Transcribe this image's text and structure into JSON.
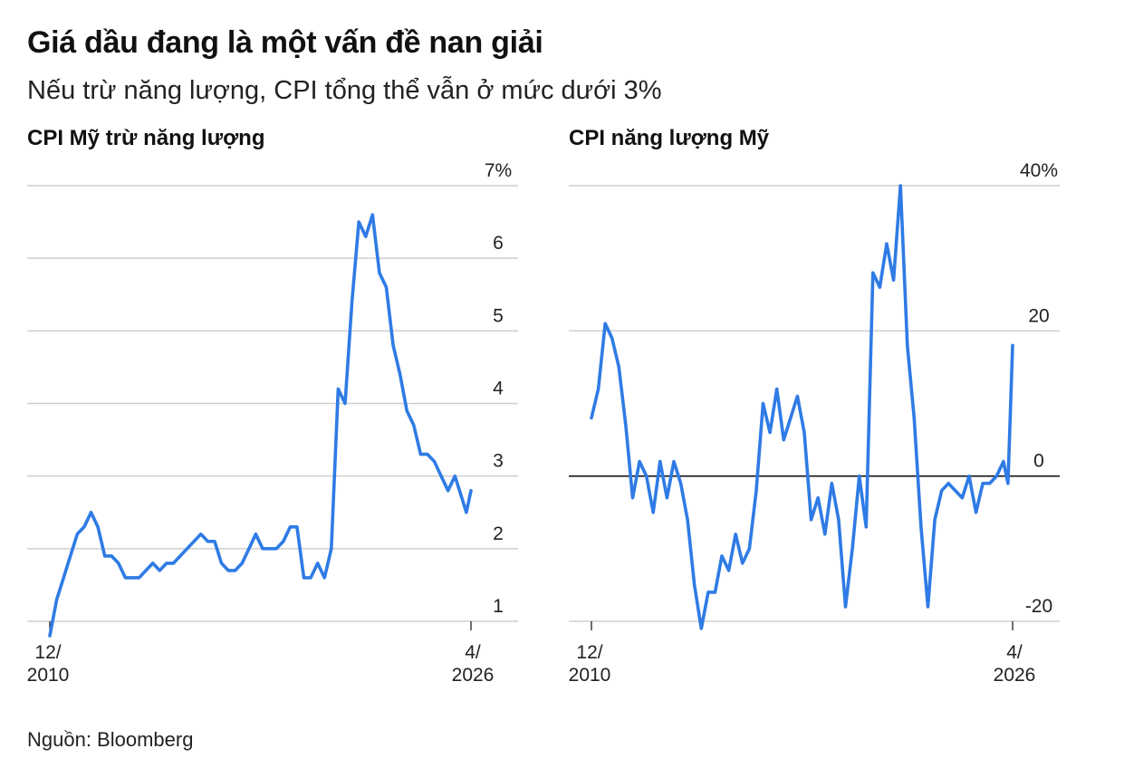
{
  "title": "Giá dầu đang là một vấn đề nan giải",
  "subtitle": "Nếu trừ năng lượng, CPI tổng thể vẫn ở mức dưới 3%",
  "source": "Nguồn: Bloomberg",
  "colors": {
    "line": "#2f7be5",
    "grid": "#cfcfcf",
    "zero_line": "#111111"
  },
  "chart_data": [
    {
      "type": "line",
      "title": "CPI Mỹ trừ năng lượng",
      "x_tick_labels": [
        [
          "12/",
          "2010"
        ],
        [
          "4/",
          "2026"
        ]
      ],
      "x_start": "2010-12",
      "x_end": "2026-04",
      "ylim": [
        1,
        7
      ],
      "y_ticks": [
        1,
        2,
        3,
        4,
        5,
        6,
        7
      ],
      "y_tick_labels": [
        "1",
        "2",
        "3",
        "4",
        "5",
        "6",
        "7%"
      ],
      "grid": true,
      "x": [
        "2010-12",
        "2011-03",
        "2011-06",
        "2011-09",
        "2011-12",
        "2012-03",
        "2012-06",
        "2012-09",
        "2012-12",
        "2013-03",
        "2013-06",
        "2013-09",
        "2013-12",
        "2014-03",
        "2014-06",
        "2014-09",
        "2014-12",
        "2015-03",
        "2015-06",
        "2015-09",
        "2015-12",
        "2016-03",
        "2016-06",
        "2016-09",
        "2016-12",
        "2017-03",
        "2017-06",
        "2017-09",
        "2017-12",
        "2018-03",
        "2018-06",
        "2018-09",
        "2018-12",
        "2019-03",
        "2019-06",
        "2019-09",
        "2019-12",
        "2020-03",
        "2020-06",
        "2020-09",
        "2020-12",
        "2021-03",
        "2021-06",
        "2021-09",
        "2021-12",
        "2022-03",
        "2022-06",
        "2022-09",
        "2022-12",
        "2023-03",
        "2023-06",
        "2023-09",
        "2023-12",
        "2024-03",
        "2024-06",
        "2024-09",
        "2024-12",
        "2025-03",
        "2025-06",
        "2025-09",
        "2025-12",
        "2026-02",
        "2026-04"
      ],
      "values": [
        0.8,
        1.3,
        1.6,
        1.9,
        2.2,
        2.3,
        2.5,
        2.3,
        1.9,
        1.9,
        1.8,
        1.6,
        1.6,
        1.6,
        1.7,
        1.8,
        1.7,
        1.8,
        1.8,
        1.9,
        2.0,
        2.1,
        2.2,
        2.1,
        2.1,
        1.8,
        1.7,
        1.7,
        1.8,
        2.0,
        2.2,
        2.0,
        2.0,
        2.0,
        2.1,
        2.3,
        2.3,
        1.6,
        1.6,
        1.8,
        1.6,
        2.0,
        4.2,
        4.0,
        5.4,
        6.5,
        6.3,
        6.6,
        5.8,
        5.6,
        4.8,
        4.4,
        3.9,
        3.7,
        3.3,
        3.3,
        3.2,
        3.0,
        2.8,
        3.0,
        2.7,
        2.5,
        2.8
      ]
    },
    {
      "type": "line",
      "title": "CPI năng lượng Mỹ",
      "x_tick_labels": [
        [
          "12/",
          "2010"
        ],
        [
          "4/",
          "2026"
        ]
      ],
      "x_start": "2010-12",
      "x_end": "2026-04",
      "ylim": [
        -20,
        40
      ],
      "y_ticks": [
        -20,
        0,
        20,
        40
      ],
      "y_tick_labels": [
        "-20",
        "0",
        "20",
        "40%"
      ],
      "grid": true,
      "x": [
        "2010-12",
        "2011-03",
        "2011-06",
        "2011-09",
        "2011-12",
        "2012-03",
        "2012-06",
        "2012-09",
        "2012-12",
        "2013-03",
        "2013-06",
        "2013-09",
        "2013-12",
        "2014-03",
        "2014-06",
        "2014-09",
        "2014-12",
        "2015-03",
        "2015-06",
        "2015-09",
        "2015-12",
        "2016-03",
        "2016-06",
        "2016-09",
        "2016-12",
        "2017-03",
        "2017-06",
        "2017-09",
        "2017-12",
        "2018-03",
        "2018-06",
        "2018-09",
        "2018-12",
        "2019-03",
        "2019-06",
        "2019-09",
        "2019-12",
        "2020-03",
        "2020-06",
        "2020-09",
        "2020-12",
        "2021-03",
        "2021-06",
        "2021-09",
        "2021-12",
        "2022-03",
        "2022-06",
        "2022-09",
        "2022-12",
        "2023-03",
        "2023-06",
        "2023-09",
        "2023-12",
        "2024-03",
        "2024-06",
        "2024-09",
        "2024-12",
        "2025-03",
        "2025-06",
        "2025-09",
        "2025-12",
        "2026-02",
        "2026-04"
      ],
      "values": [
        8,
        12,
        21,
        19,
        15,
        7,
        -3,
        2,
        0,
        -5,
        2,
        -3,
        2,
        -1,
        -6,
        -15,
        -21,
        -16,
        -16,
        -11,
        -13,
        -8,
        -12,
        -10,
        -2,
        10,
        6,
        12,
        5,
        8,
        11,
        6,
        -6,
        -3,
        -8,
        -1,
        -6,
        -18,
        -10,
        0,
        -7,
        28,
        26,
        32,
        27,
        40,
        18,
        8,
        -7,
        -18,
        -6,
        -2,
        -1,
        -2,
        -3,
        0,
        -5,
        -1,
        -1,
        0,
        2,
        -1,
        18
      ]
    }
  ]
}
